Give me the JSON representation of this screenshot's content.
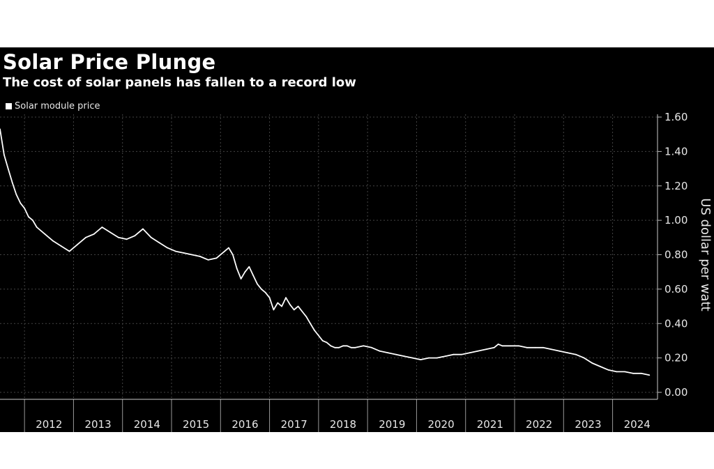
{
  "chart_data": {
    "type": "line",
    "title": "Solar Price Plunge",
    "subtitle": "The cost of solar panels has fallen to a record low",
    "ylabel": "US dollar per watt",
    "xlabel": "",
    "ylim": [
      0,
      1.6
    ],
    "yticks": [
      "0.00",
      "0.20",
      "0.40",
      "0.60",
      "0.80",
      "1.00",
      "1.20",
      "1.40",
      "1.60"
    ],
    "xticks": [
      "2012",
      "2013",
      "2014",
      "2015",
      "2016",
      "2017",
      "2018",
      "2019",
      "2020",
      "2021",
      "2022",
      "2023",
      "2024"
    ],
    "xlim": [
      "2011-07",
      "2024-12"
    ],
    "grid": true,
    "legend_position": "top-left",
    "colors": {
      "background": "#000000",
      "line": "#ffffff",
      "grid": "#444444",
      "text": "#e8e8e8"
    },
    "series": [
      {
        "name": "Solar module price",
        "x": [
          "2011-07",
          "2011-08",
          "2011-09",
          "2011-10",
          "2011-11",
          "2011-12",
          "2012-01",
          "2012-02",
          "2012-03",
          "2012-04",
          "2012-06",
          "2012-08",
          "2012-10",
          "2012-12",
          "2013-02",
          "2013-04",
          "2013-06",
          "2013-08",
          "2013-10",
          "2013-12",
          "2014-02",
          "2014-04",
          "2014-06",
          "2014-08",
          "2014-10",
          "2014-12",
          "2015-02",
          "2015-04",
          "2015-06",
          "2015-08",
          "2015-10",
          "2015-12",
          "2016-02",
          "2016-03",
          "2016-04",
          "2016-05",
          "2016-06",
          "2016-07",
          "2016-08",
          "2016-09",
          "2016-10",
          "2016-11",
          "2016-12",
          "2017-01",
          "2017-02",
          "2017-03",
          "2017-04",
          "2017-05",
          "2017-06",
          "2017-07",
          "2017-08",
          "2017-09",
          "2017-10",
          "2017-11",
          "2017-12",
          "2018-01",
          "2018-02",
          "2018-03",
          "2018-04",
          "2018-05",
          "2018-06",
          "2018-07",
          "2018-08",
          "2018-09",
          "2018-10",
          "2018-12",
          "2019-02",
          "2019-04",
          "2019-06",
          "2019-08",
          "2019-10",
          "2019-12",
          "2020-02",
          "2020-04",
          "2020-06",
          "2020-08",
          "2020-10",
          "2020-12",
          "2021-02",
          "2021-04",
          "2021-06",
          "2021-08",
          "2021-09",
          "2021-10",
          "2021-12",
          "2022-02",
          "2022-04",
          "2022-06",
          "2022-08",
          "2022-10",
          "2022-12",
          "2023-02",
          "2023-04",
          "2023-06",
          "2023-08",
          "2023-10",
          "2023-12",
          "2024-02",
          "2024-04",
          "2024-06",
          "2024-08",
          "2024-10"
        ],
        "y": [
          1.53,
          1.38,
          1.3,
          1.22,
          1.15,
          1.1,
          1.07,
          1.02,
          1.0,
          0.96,
          0.92,
          0.88,
          0.85,
          0.82,
          0.86,
          0.9,
          0.92,
          0.96,
          0.93,
          0.9,
          0.89,
          0.91,
          0.95,
          0.9,
          0.87,
          0.84,
          0.82,
          0.81,
          0.8,
          0.79,
          0.77,
          0.78,
          0.82,
          0.84,
          0.8,
          0.72,
          0.66,
          0.7,
          0.73,
          0.68,
          0.63,
          0.6,
          0.58,
          0.55,
          0.48,
          0.52,
          0.5,
          0.55,
          0.51,
          0.48,
          0.5,
          0.47,
          0.44,
          0.4,
          0.36,
          0.33,
          0.3,
          0.29,
          0.27,
          0.26,
          0.26,
          0.27,
          0.27,
          0.26,
          0.26,
          0.27,
          0.26,
          0.24,
          0.23,
          0.22,
          0.21,
          0.2,
          0.19,
          0.2,
          0.2,
          0.21,
          0.22,
          0.22,
          0.23,
          0.24,
          0.25,
          0.26,
          0.28,
          0.27,
          0.27,
          0.27,
          0.26,
          0.26,
          0.26,
          0.25,
          0.24,
          0.23,
          0.22,
          0.2,
          0.17,
          0.15,
          0.13,
          0.12,
          0.12,
          0.11,
          0.11,
          0.1
        ]
      }
    ]
  }
}
